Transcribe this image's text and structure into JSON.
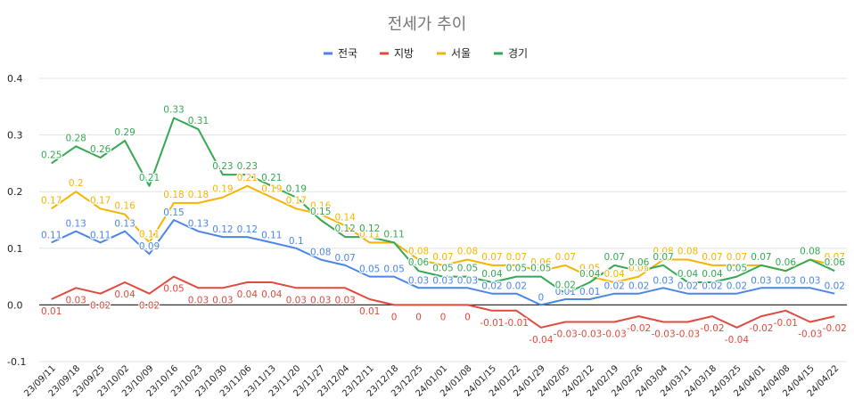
{
  "chart_data": {
    "type": "line",
    "title": "전세가 추이",
    "xlabel": "",
    "ylabel": "",
    "ylim": [
      -0.1,
      0.4
    ],
    "yticks": [
      -0.1,
      0.0,
      0.1,
      0.2,
      0.3,
      0.4
    ],
    "ytick_labels": [
      "-0.1",
      "0.0",
      "0.1",
      "0.2",
      "0.3",
      "0.4"
    ],
    "grid": "horizontal",
    "legend_position": "top",
    "categories": [
      "23/09/11",
      "23/09/18",
      "23/09/25",
      "23/10/02",
      "23/10/09",
      "23/10/16",
      "23/10/23",
      "23/10/30",
      "23/11/06",
      "23/11/13",
      "23/11/20",
      "23/11/27",
      "23/12/04",
      "23/12/11",
      "23/12/18",
      "23/12/25",
      "24/01/01",
      "24/01/08",
      "24/01/15",
      "24/01/22",
      "24/01/29",
      "24/02/05",
      "24/02/12",
      "24/02/19",
      "24/02/26",
      "24/03/04",
      "24/03/11",
      "24/03/18",
      "24/03/25",
      "24/04/01",
      "24/04/08",
      "24/04/15",
      "24/04/22"
    ],
    "series": [
      {
        "name": "전국",
        "color": "#4a86e8",
        "values": [
          0.11,
          0.13,
          0.11,
          0.13,
          0.09,
          0.15,
          0.13,
          0.12,
          0.12,
          0.11,
          0.1,
          0.08,
          0.07,
          0.05,
          0.05,
          0.03,
          0.03,
          0.03,
          0.02,
          0.02,
          0.0,
          0.01,
          0.01,
          0.02,
          0.02,
          0.03,
          0.02,
          0.02,
          0.02,
          0.03,
          0.03,
          0.03,
          0.02
        ],
        "labels": [
          "0.11",
          "0.13",
          "0.11",
          "0.13",
          "0.09",
          "0.15",
          "0.13",
          "0.12",
          "0.12",
          "0.11",
          "0.1",
          "0.08",
          "0.07",
          "0.05",
          "0.05",
          "0.03",
          "0.03",
          "0.03",
          "0.02",
          "0.02",
          "0",
          "0.01",
          "0.01",
          "0.02",
          "0.02",
          "0.03",
          "0.02",
          "0.02",
          "0.02",
          "0.03",
          "0.03",
          "0.03",
          "0.02"
        ]
      },
      {
        "name": "지방",
        "color": "#e04a3f",
        "values": [
          0.01,
          0.03,
          0.02,
          0.04,
          0.02,
          0.05,
          0.03,
          0.03,
          0.04,
          0.04,
          0.03,
          0.03,
          0.03,
          0.01,
          0.0,
          0.0,
          0.0,
          0.0,
          -0.01,
          -0.01,
          -0.04,
          -0.03,
          -0.03,
          -0.03,
          -0.02,
          -0.03,
          -0.03,
          -0.02,
          -0.04,
          -0.02,
          -0.01,
          -0.03,
          -0.02
        ],
        "labels": [
          "0.01",
          "0.03",
          "0.02",
          "0.04",
          "0.02",
          "0.05",
          "0.03",
          "0.03",
          "0.04",
          "0.04",
          "0.03",
          "0.03",
          "0.03",
          "0.01",
          "0",
          "0",
          "0",
          "0",
          "-0.01",
          "-0.01",
          "-0.04",
          "-0.03",
          "-0.03",
          "-0.03",
          "-0.02",
          "-0.03",
          "-0.03",
          "-0.02",
          "-0.04",
          "-0.02",
          "-0.01",
          "-0.03",
          "-0.02"
        ]
      },
      {
        "name": "서울",
        "color": "#f6b400",
        "values": [
          0.17,
          0.2,
          0.17,
          0.16,
          0.11,
          0.18,
          0.18,
          0.19,
          0.21,
          0.19,
          0.17,
          0.16,
          0.14,
          0.11,
          0.11,
          0.08,
          0.07,
          0.08,
          0.07,
          0.07,
          0.06,
          0.07,
          0.05,
          0.04,
          0.05,
          0.08,
          0.08,
          0.07,
          0.07,
          0.07,
          0.06,
          0.08,
          0.07
        ],
        "labels": [
          "0.17",
          "0.2",
          "0.17",
          "0.16",
          "0.11",
          "0.18",
          "0.18",
          "0.19",
          "0.21",
          "0.19",
          "0.17",
          "0.16",
          "0.14",
          "0.11",
          "0.11",
          "0.08",
          "0.07",
          "0.08",
          "0.07",
          "0.07",
          "0.06",
          "0.07",
          "0.05",
          "0.04",
          "0.05",
          "0.08",
          "0.08",
          "0.07",
          "0.07",
          "0.07",
          "0.06",
          "0.08",
          "0.07"
        ]
      },
      {
        "name": "경기",
        "color": "#34a853",
        "values": [
          0.25,
          0.28,
          0.26,
          0.29,
          0.21,
          0.33,
          0.31,
          0.23,
          0.23,
          0.21,
          0.19,
          0.15,
          0.12,
          0.12,
          0.11,
          0.06,
          0.05,
          0.05,
          0.04,
          0.05,
          0.05,
          0.02,
          0.04,
          0.07,
          0.06,
          0.07,
          0.04,
          0.04,
          0.05,
          0.07,
          0.06,
          0.08,
          0.06
        ],
        "labels": [
          "0.25",
          "0.28",
          "0.26",
          "0.29",
          "0.21",
          "0.33",
          "0.31",
          "0.23",
          "0.23",
          "0.21",
          "0.19",
          "0.15",
          "0.12",
          "0.12",
          "0.11",
          "0.06",
          "0.05",
          "0.05",
          "0.04",
          "0.05",
          "0.05",
          "0.02",
          "0.04",
          "0.07",
          "0.06",
          "0.07",
          "0.04",
          "0.04",
          "0.05",
          "0.07",
          "0.06",
          "0.08",
          "0.06"
        ]
      }
    ]
  }
}
